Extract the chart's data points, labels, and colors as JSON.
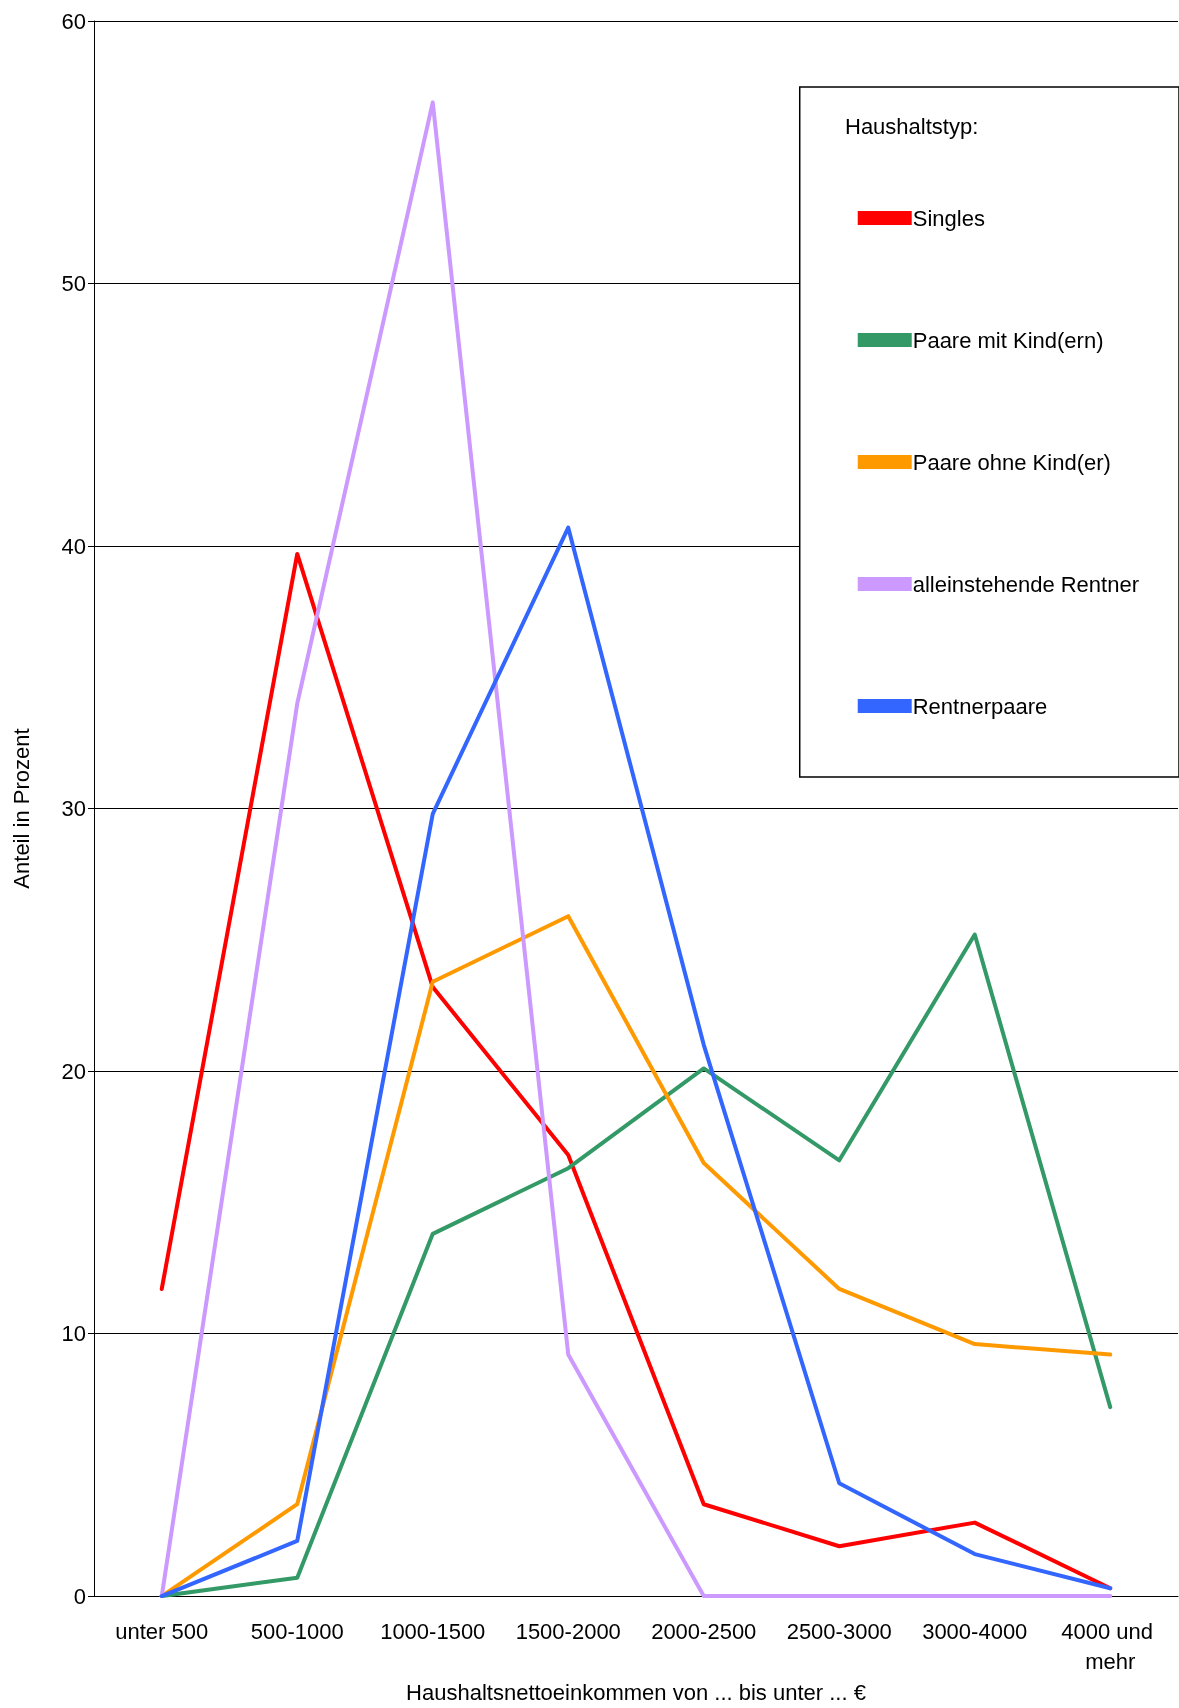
{
  "chart_data": {
    "type": "line",
    "xlabel": "Haushaltsnettoeinkommen von ... bis unter ... €",
    "ylabel": "Anteil in Prozent",
    "legend_title": "Haushaltstyp:",
    "categories": [
      "unter 500",
      "500-1000",
      "1000-1500",
      "1500-2000",
      "2000-2500",
      "2500-3000",
      "3000-4000",
      "4000 und mehr"
    ],
    "series": [
      {
        "name": "Singles",
        "color": "#ff0000",
        "values": [
          11.7,
          39.7,
          23.2,
          16.8,
          3.5,
          1.9,
          2.8,
          0.3
        ]
      },
      {
        "name": "Paare mit Kind(ern)",
        "color": "#339966",
        "values": [
          0,
          0.7,
          13.8,
          16.3,
          20.1,
          16.6,
          25.2,
          7.2
        ]
      },
      {
        "name": "Paare ohne Kind(er)",
        "color": "#ff9900",
        "values": [
          0,
          3.5,
          23.4,
          25.9,
          16.5,
          11.7,
          9.6,
          9.2
        ]
      },
      {
        "name": "alleinstehende Rentner",
        "color": "#cc99ff",
        "values": [
          0,
          34.0,
          56.9,
          9.2,
          0,
          0,
          0,
          0
        ]
      },
      {
        "name": "Rentnerpaare",
        "color": "#3366ff",
        "values": [
          0,
          2.1,
          29.8,
          40.7,
          21.0,
          4.3,
          1.6,
          0.3
        ]
      }
    ],
    "ylim": [
      0,
      60
    ],
    "yticks": [
      0,
      10,
      20,
      30,
      40,
      50,
      60
    ],
    "grid": "y",
    "legend": "top right",
    "marker": "none",
    "line_style": "solid"
  }
}
